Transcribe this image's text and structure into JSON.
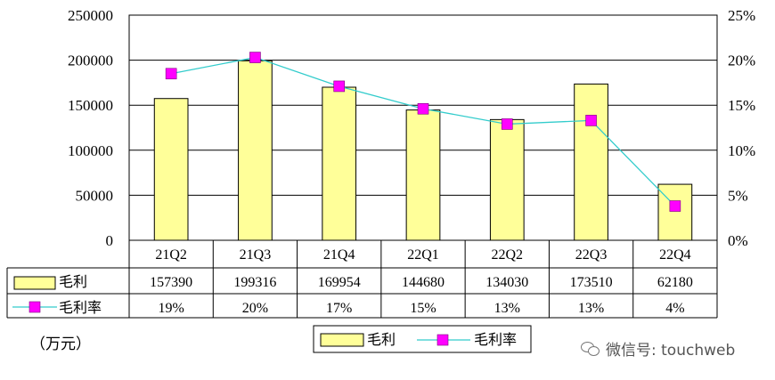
{
  "chart_data": {
    "type": "bar",
    "categories": [
      "21Q2",
      "21Q3",
      "21Q4",
      "22Q1",
      "22Q2",
      "22Q3",
      "22Q4"
    ],
    "series": [
      {
        "name": "毛利",
        "type": "bar",
        "axis": "left",
        "values": [
          157390,
          199316,
          169954,
          144680,
          134030,
          173510,
          62180
        ],
        "labels": [
          "157390",
          "199316",
          "169954",
          "144680",
          "134030",
          "173510",
          "62180"
        ]
      },
      {
        "name": "毛利率",
        "type": "line",
        "axis": "right",
        "values": [
          18.5,
          20.3,
          17.1,
          14.6,
          12.9,
          13.3,
          3.8
        ],
        "labels": [
          "19%",
          "20%",
          "17%",
          "15%",
          "13%",
          "13%",
          "4%"
        ]
      }
    ],
    "left_axis": {
      "min": 0,
      "max": 250000,
      "ticks": [
        "0",
        "50000",
        "100000",
        "150000",
        "200000",
        "250000"
      ]
    },
    "right_axis": {
      "min": 0,
      "max": 25,
      "ticks": [
        "0%",
        "5%",
        "10%",
        "15%",
        "20%",
        "25%"
      ]
    },
    "grid": true,
    "legend": "bottom",
    "unit_label": "（万元）",
    "colors": {
      "bar_fill": "#ffff99",
      "bar_stroke": "#000000",
      "line": "#33cccc",
      "marker": "#ff00ff"
    }
  },
  "watermark": {
    "text": "微信号: touchweb",
    "icon": "wechat-icon"
  }
}
